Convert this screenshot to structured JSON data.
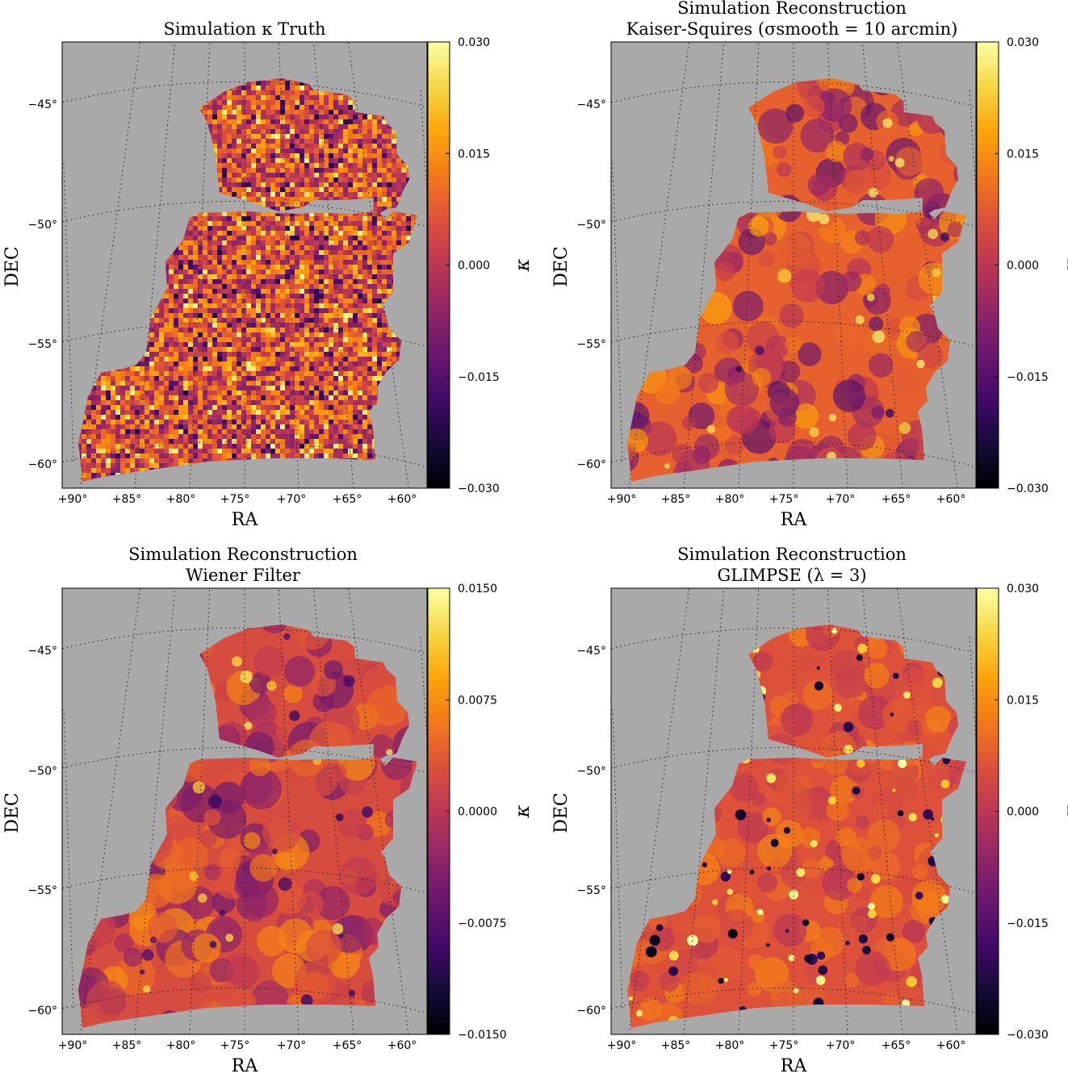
{
  "chart_data": [
    {
      "type": "heatmap",
      "title": [
        "Simulation κ Truth"
      ],
      "xlabel": "RA",
      "ylabel": "DEC",
      "ra_ticks": [
        "+90°",
        "+85°",
        "+80°",
        "+75°",
        "+70°",
        "+65°",
        "+60°"
      ],
      "dec_ticks": [
        "−45°",
        "−50°",
        "−55°",
        "−60°"
      ],
      "colorbar": {
        "label": "κ",
        "vmin": -0.03,
        "vmax": 0.03,
        "ticks": [
          "0.030",
          "0.015",
          "0.000",
          "−0.015",
          "−0.030"
        ]
      },
      "colormap": "inferno",
      "background": "#a9a9a9",
      "style": "noisy"
    },
    {
      "type": "heatmap",
      "title": [
        "Simulation Reconstruction",
        "Kaiser-Squires  (σsmooth = 10 arcmin)"
      ],
      "xlabel": "RA",
      "ylabel": "DEC",
      "ra_ticks": [
        "+90°",
        "+85°",
        "+80°",
        "+75°",
        "+70°",
        "+65°",
        "+60°"
      ],
      "dec_ticks": [
        "−45°",
        "−50°",
        "−55°",
        "−60°"
      ],
      "colorbar": {
        "label": "κ",
        "vmin": -0.03,
        "vmax": 0.03,
        "ticks": [
          "0.030",
          "0.015",
          "0.000",
          "−0.015",
          "−0.030"
        ]
      },
      "colormap": "inferno",
      "background": "#a9a9a9",
      "style": "smooth"
    },
    {
      "type": "heatmap",
      "title": [
        "Simulation Reconstruction",
        "Wiener Filter"
      ],
      "xlabel": "RA",
      "ylabel": "DEC",
      "ra_ticks": [
        "+90°",
        "+85°",
        "+80°",
        "+75°",
        "+70°",
        "+65°",
        "+60°"
      ],
      "dec_ticks": [
        "−45°",
        "−50°",
        "−55°",
        "−60°"
      ],
      "colorbar": {
        "label": "κ",
        "vmin": -0.015,
        "vmax": 0.015,
        "ticks": [
          "0.0150",
          "0.0075",
          "0.0000",
          "−0.0075",
          "−0.0150"
        ]
      },
      "colormap": "inferno",
      "background": "#a9a9a9",
      "style": "soft"
    },
    {
      "type": "heatmap",
      "title": [
        "Simulation Reconstruction",
        "GLIMPSE  (λ = 3)"
      ],
      "xlabel": "RA",
      "ylabel": "DEC",
      "ra_ticks": [
        "+90°",
        "+85°",
        "+80°",
        "+75°",
        "+70°",
        "+65°",
        "+60°"
      ],
      "dec_ticks": [
        "−45°",
        "−50°",
        "−55°",
        "−60°"
      ],
      "colorbar": {
        "label": "κ",
        "vmin": -0.03,
        "vmax": 0.03,
        "ticks": [
          "0.030",
          "0.015",
          "0.000",
          "−0.015",
          "−0.030"
        ]
      },
      "colormap": "inferno",
      "background": "#a9a9a9",
      "style": "peaks"
    }
  ]
}
